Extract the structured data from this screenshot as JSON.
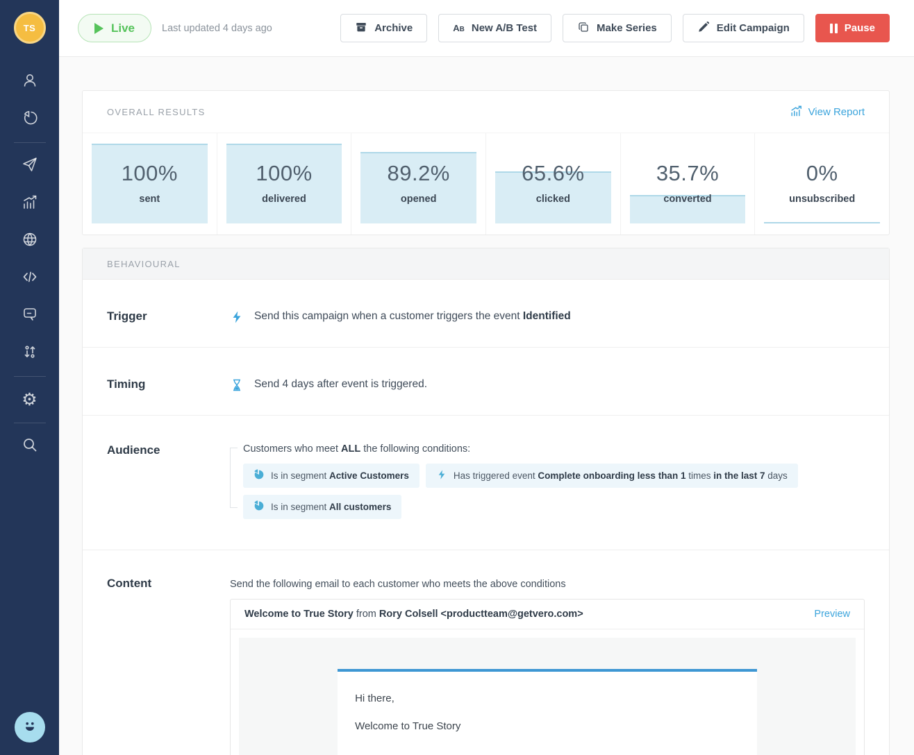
{
  "colors": {
    "sidebar_navy": "#233659",
    "avatar_gold": "#F5BD41",
    "accent_blue": "#3BA4DC",
    "live_green": "#56C35B",
    "pause_red": "#E8564E",
    "stat_fill_blue": "#D9EDF5",
    "pill_blue": "#EDF6FB"
  },
  "sidebar": {
    "avatar_initials": "TS",
    "nav_icons": [
      "user-icon",
      "pie-chart-icon",
      "paper-plane-icon",
      "bar-chart-icon",
      "globe-icon",
      "code-icon",
      "chat-icon",
      "sort-arrows-icon",
      "gear-icon",
      "search-icon"
    ],
    "gear_glyph": "⚙",
    "launcher_icon": "smiley-icon"
  },
  "topbar": {
    "live_label": "Live",
    "last_updated": "Last updated 4 days ago",
    "buttons": {
      "archive": "Archive",
      "ab_test": "New A/B Test",
      "make_series": "Make Series",
      "edit_campaign": "Edit Campaign",
      "pause": "Pause"
    },
    "ab_icon": {
      "a": "A",
      "b": "B"
    }
  },
  "results": {
    "title": "OVERALL RESULTS",
    "view_report": "View Report",
    "stats": [
      {
        "value": "100%",
        "label": "sent",
        "pct": 100
      },
      {
        "value": "100%",
        "label": "delivered",
        "pct": 100
      },
      {
        "value": "89.2%",
        "label": "opened",
        "pct": 89.2
      },
      {
        "value": "65.6%",
        "label": "clicked",
        "pct": 65.6
      },
      {
        "value": "35.7%",
        "label": "converted",
        "pct": 35.7
      },
      {
        "value": "0%",
        "label": "unsubscribed",
        "pct": 0
      }
    ]
  },
  "behavioural": {
    "title": "BEHAVIOURAL"
  },
  "trigger": {
    "label": "Trigger",
    "text": "Send this campaign when a customer triggers the event ",
    "bold": "Identified"
  },
  "timing": {
    "label": "Timing",
    "text": "Send 4 days after event is triggered."
  },
  "audience": {
    "label": "Audience",
    "intro_pre": "Customers who meet ",
    "intro_bold": "ALL",
    "intro_post": " the following conditions:",
    "conditions": [
      {
        "icon": "pie-chart-icon",
        "pre": "Is in segment ",
        "bold": "Active Customers"
      },
      {
        "icon": "lightning-icon",
        "pre": "Has triggered event ",
        "b1": "Complete onboarding less than 1",
        "mid": " times ",
        "b2": "in the last 7",
        "post": " days"
      },
      {
        "icon": "pie-chart-icon",
        "pre": "Is in segment ",
        "bold": "All customers"
      }
    ]
  },
  "content": {
    "label": "Content",
    "description": "Send the following email to each customer who meets the above conditions",
    "email_subject": "Welcome to True Story",
    "from_connector": " from ",
    "email_sender": "Rory Colsell <productteam@getvero.com>",
    "preview_label": "Preview",
    "body_line1": "Hi there,",
    "body_line2": "Welcome to True Story"
  }
}
